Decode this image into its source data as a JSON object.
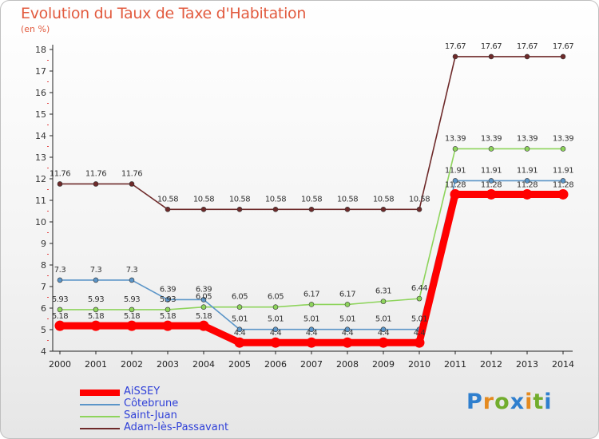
{
  "header": {
    "title": "Evolution du Taux de Taxe d'Habitation",
    "unit": "(en %)"
  },
  "brand": {
    "letters": [
      "P",
      "r",
      "o",
      "x",
      "i",
      "t",
      "i"
    ]
  },
  "chart_data": {
    "type": "line",
    "title": "Evolution du Taux de Taxe d'Habitation",
    "subtitle": "(en %)",
    "xlabel": "",
    "ylabel": "",
    "ylim": [
      4,
      18
    ],
    "yticks": [
      4,
      5,
      6,
      7,
      8,
      9,
      10,
      11,
      12,
      13,
      14,
      15,
      16,
      17,
      18
    ],
    "grid": false,
    "legend_position": "bottom-left",
    "x": [
      "2000",
      "2001",
      "2002",
      "2003",
      "2004",
      "2005",
      "2006",
      "2007",
      "2008",
      "2009",
      "2010",
      "2011",
      "2012",
      "2013",
      "2014"
    ],
    "series": [
      {
        "name": "AiSSEY",
        "color": "#ff0000",
        "values": [
          5.18,
          5.18,
          5.18,
          5.18,
          5.18,
          4.4,
          4.4,
          4.4,
          4.4,
          4.4,
          4.4,
          11.28,
          11.28,
          11.28,
          11.28
        ]
      },
      {
        "name": "Côtebrune",
        "color": "#5b95c8",
        "values": [
          7.3,
          7.3,
          7.3,
          6.39,
          6.39,
          5.01,
          5.01,
          5.01,
          5.01,
          5.01,
          5.01,
          11.91,
          11.91,
          11.91,
          11.91
        ]
      },
      {
        "name": "Saint-Juan",
        "color": "#8ed45c",
        "values": [
          5.93,
          5.93,
          5.93,
          5.93,
          6.05,
          6.05,
          6.05,
          6.17,
          6.17,
          6.31,
          6.44,
          13.39,
          13.39,
          13.39,
          13.39
        ]
      },
      {
        "name": "Adam-lès-Passavant",
        "color": "#6e2a2a",
        "values": [
          11.76,
          11.76,
          11.76,
          10.58,
          10.58,
          10.58,
          10.58,
          10.58,
          10.58,
          10.58,
          10.58,
          17.67,
          17.67,
          17.67,
          17.67
        ]
      }
    ],
    "data_labels": {
      "AiSSEY": [
        "5.18",
        "5.18",
        "5.18",
        "5.18",
        "5.18",
        "4.4",
        "4.4",
        "4.4",
        "4.4",
        "4.4",
        "4.4",
        "11.28",
        "11.28",
        "11.28",
        "11.28"
      ],
      "Côtebrune": [
        "7.3",
        "7.3",
        "7.3",
        "6.39",
        "6.39",
        "5.01",
        "5.01",
        "5.01",
        "5.01",
        "5.01",
        "5.01",
        "11.91",
        "11.91",
        "11.91",
        "11.91"
      ],
      "Saint-Juan": [
        "5.93",
        "5.93",
        "5.93",
        "5.93",
        "6.05",
        "6.05",
        "6.05",
        "6.17",
        "6.17",
        "6.31",
        "6.44",
        "13.39",
        "13.39",
        "13.39",
        "13.39"
      ],
      "Adam-lès-Passavant": [
        "11.76",
        "11.76",
        "11.76",
        "10.58",
        "10.58",
        "10.58",
        "10.58",
        "10.58",
        "10.58",
        "10.58",
        "10.58",
        "17.67",
        "17.67",
        "17.67",
        "17.67"
      ]
    }
  }
}
